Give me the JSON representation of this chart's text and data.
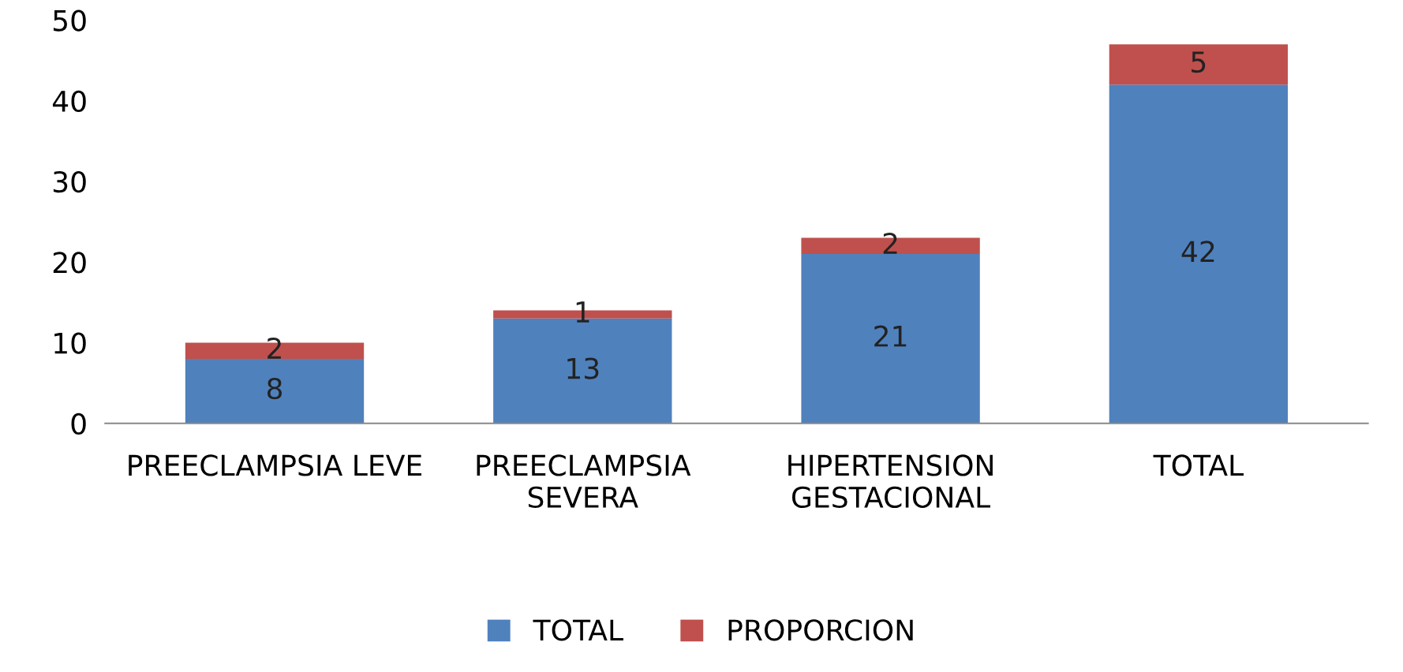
{
  "chart_data": {
    "type": "bar",
    "stacked": true,
    "categories": [
      "PREECLAMPSIA LEVE",
      "PREECLAMPSIA\nSEVERA",
      "HIPERTENSION\nGESTACIONAL",
      "TOTAL"
    ],
    "series": [
      {
        "name": "TOTAL",
        "color": "#4f81bd",
        "values": [
          8,
          13,
          21,
          42
        ]
      },
      {
        "name": "PROPORCION",
        "color": "#c0504d",
        "values": [
          2,
          1,
          2,
          5
        ]
      }
    ],
    "ylim": [
      0,
      50
    ],
    "yticks": [
      0,
      10,
      20,
      30,
      40,
      50
    ],
    "grid": false,
    "legend": "bottom",
    "data_labels": true
  }
}
